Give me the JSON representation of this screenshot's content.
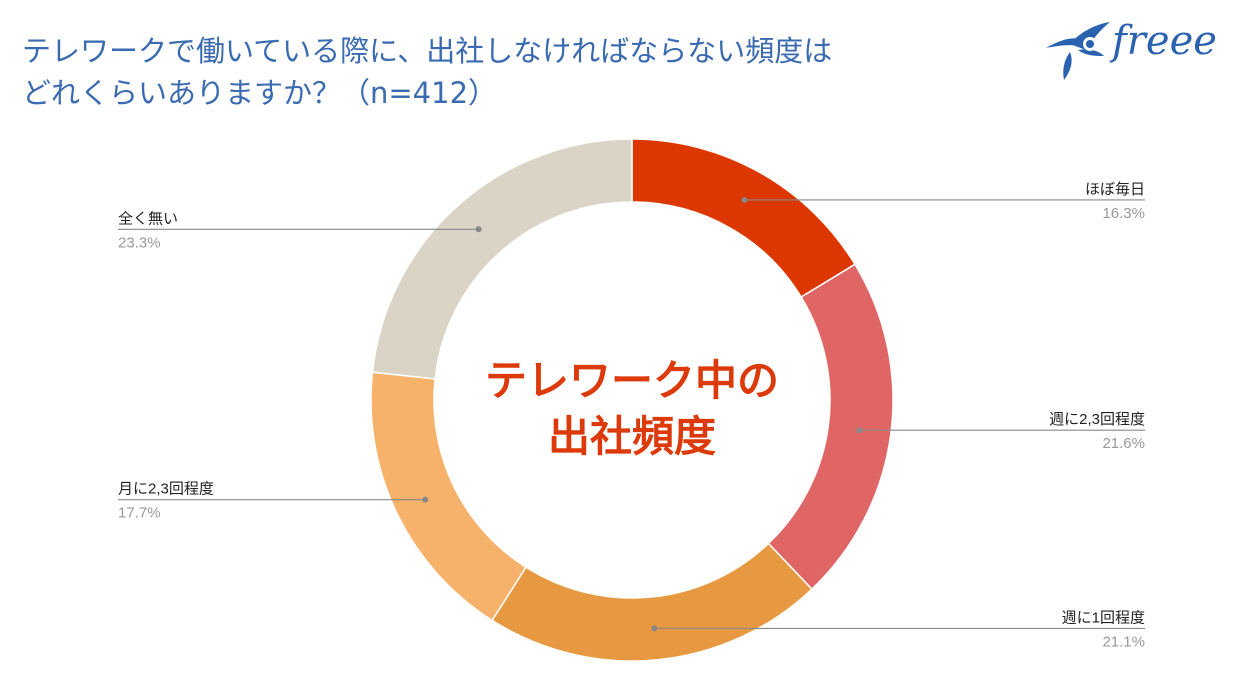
{
  "header": {
    "title_line1": "テレワークで働いている際に、出社しなければならない頻度は",
    "title_line2": "どれくらいありますか？（n=412）"
  },
  "logo": {
    "text": "freee",
    "icon": "swallow-bird-icon",
    "color": "#2a62b0"
  },
  "chart_data": {
    "type": "pie",
    "donut": true,
    "center_label": [
      "テレワーク中の",
      "出社頻度"
    ],
    "center_label_color": "#dc3a0a",
    "slices": [
      {
        "label": "ほぼ毎日",
        "value": 16.3,
        "display": "16.3%",
        "color": "#dd3700",
        "label_side": "right"
      },
      {
        "label": "週に2,3回程度",
        "value": 21.6,
        "display": "21.6%",
        "color": "#e06666",
        "label_side": "right"
      },
      {
        "label": "週に1回程度",
        "value": 21.1,
        "display": "21.1%",
        "color": "#e69940",
        "label_side": "right"
      },
      {
        "label": "月に2,3回程度",
        "value": 17.7,
        "display": "17.7%",
        "color": "#f6b26b",
        "label_side": "left"
      },
      {
        "label": "全く無い",
        "value": 23.3,
        "display": "23.3%",
        "color": "#d9d4c6",
        "label_side": "left"
      }
    ]
  }
}
